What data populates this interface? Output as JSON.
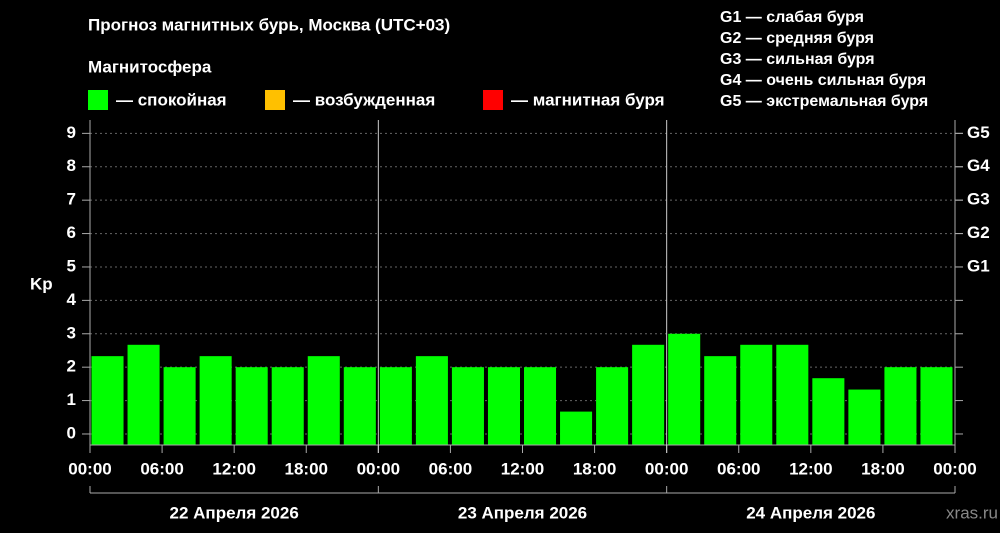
{
  "chart_data": {
    "type": "bar",
    "title": "Прогноз магнитных бурь, Москва (UTC+03)",
    "legend_title": "Магнитосфера",
    "legend": [
      {
        "name": "— спокойная",
        "color": "#00ff00"
      },
      {
        "name": "— возбужденная",
        "color": "#ffc000"
      },
      {
        "name": "— магнитная буря",
        "color": "#ff0000"
      }
    ],
    "storm_legend": [
      "G1 — слабая буря",
      "G2 — средняя буря",
      "G3 — сильная буря",
      "G4 — очень сильная буря",
      "G5 — экстремальная буря"
    ],
    "y_label": "Kp",
    "x": [
      0,
      3,
      6,
      9,
      12,
      15,
      18,
      21,
      24,
      27,
      30,
      33,
      36,
      39,
      42,
      45,
      48,
      51,
      54,
      57,
      60,
      63,
      66,
      69
    ],
    "series": [
      {
        "color": "#00ff00",
        "values": [
          2.33,
          2.67,
          2,
          2.33,
          2,
          2,
          2.33,
          2,
          2,
          2.33,
          2,
          2,
          2,
          0.67,
          2,
          2.67,
          3,
          2.33,
          2.67,
          2.67,
          1.67,
          1.33,
          2,
          2
        ]
      }
    ],
    "xlim": [
      0,
      72
    ],
    "xticks": [
      {
        "value": 0,
        "label": "00:00"
      },
      {
        "value": 6,
        "label": "06:00"
      },
      {
        "value": 12,
        "label": "12:00"
      },
      {
        "value": 18,
        "label": "18:00"
      },
      {
        "value": 24,
        "label": "00:00"
      },
      {
        "value": 30,
        "label": "06:00"
      },
      {
        "value": 36,
        "label": "12:00"
      },
      {
        "value": 42,
        "label": "18:00"
      },
      {
        "value": 48,
        "label": "00:00"
      },
      {
        "value": 54,
        "label": "06:00"
      },
      {
        "value": 60,
        "label": "12:00"
      },
      {
        "value": 66,
        "label": "18:00"
      },
      {
        "value": 72,
        "label": "00:00"
      }
    ],
    "ylim": [
      -0.33,
      9.4
    ],
    "yticks": [
      0,
      1,
      2,
      3,
      4,
      5,
      6,
      7,
      8,
      9
    ],
    "y2lim": [
      -0.33,
      9.4
    ],
    "y2ticks": [
      {
        "value": 5,
        "label": "G1"
      },
      {
        "value": 6,
        "label": "G2"
      },
      {
        "value": 7,
        "label": "G3"
      },
      {
        "value": 8,
        "label": "G4"
      },
      {
        "value": 9,
        "label": "G5"
      }
    ],
    "grid": true,
    "days": [
      "22 Апреля 2026",
      "23 Апреля 2026",
      "24 Апреля 2026"
    ],
    "watermark": "xras.ru"
  }
}
